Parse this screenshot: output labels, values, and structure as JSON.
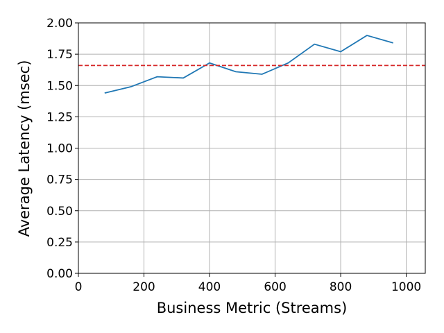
{
  "chart_data": {
    "type": "line",
    "x_label": "Business Metric (Streams)",
    "y_label": "Average Latency (msec)",
    "x": [
      80,
      160,
      240,
      320,
      400,
      480,
      560,
      640,
      720,
      800,
      880,
      960
    ],
    "series": [
      {
        "color": "#1f77b4",
        "values": [
          1.44,
          1.49,
          1.57,
          1.56,
          1.68,
          1.61,
          1.59,
          1.68,
          1.83,
          1.77,
          1.9,
          1.84
        ]
      }
    ],
    "reference_line": {
      "value": 1.66,
      "color": "#d62728",
      "style": "dashed"
    },
    "xlim": [
      0,
      1058
    ],
    "xticks": [
      0,
      200,
      400,
      600,
      800,
      1000
    ],
    "ylim": [
      0,
      2
    ],
    "yticks": [
      {
        "value": 0,
        "label": "0.00"
      },
      {
        "value": 0.25,
        "label": "0.25"
      },
      {
        "value": 0.5,
        "label": "0.50"
      },
      {
        "value": 0.75,
        "label": "0.75"
      },
      {
        "value": 1,
        "label": "1.00"
      },
      {
        "value": 1.25,
        "label": "1.25"
      },
      {
        "value": 1.5,
        "label": "1.50"
      },
      {
        "value": 1.75,
        "label": "1.75"
      },
      {
        "value": 2,
        "label": "2.00"
      }
    ],
    "grid": true
  }
}
